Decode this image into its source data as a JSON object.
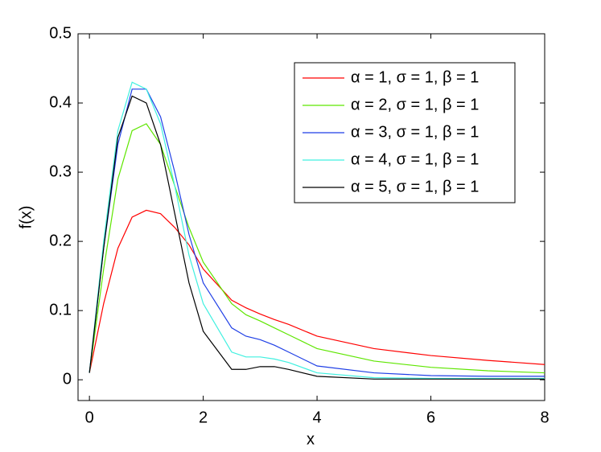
{
  "chart_data": {
    "type": "line",
    "x_label": "x",
    "y_label": "f(x)",
    "x": [
      0,
      0.25,
      0.5,
      0.75,
      1,
      1.25,
      1.5,
      1.75,
      2,
      2.5,
      2.75,
      3,
      3.25,
      3.5,
      4,
      5,
      6,
      7,
      8
    ],
    "series": [
      {
        "name": "α = 1, σ = 1, β = 1",
        "color": "#ff0000",
        "values": [
          0.01,
          0.11,
          0.19,
          0.235,
          0.245,
          0.24,
          0.22,
          0.195,
          0.16,
          0.115,
          0.104,
          0.095,
          0.087,
          0.08,
          0.063,
          0.045,
          0.035,
          0.028,
          0.022
        ]
      },
      {
        "name": "α = 2, σ = 1, β = 1",
        "color": "#5ee600",
        "values": [
          0.01,
          0.16,
          0.29,
          0.36,
          0.37,
          0.34,
          0.28,
          0.22,
          0.17,
          0.11,
          0.094,
          0.085,
          0.075,
          0.065,
          0.045,
          0.027,
          0.018,
          0.013,
          0.01
        ]
      },
      {
        "name": "α = 3, σ = 1, β = 1",
        "color": "#1f3fe6",
        "values": [
          0.01,
          0.19,
          0.34,
          0.42,
          0.42,
          0.38,
          0.3,
          0.21,
          0.14,
          0.075,
          0.063,
          0.058,
          0.05,
          0.04,
          0.02,
          0.01,
          0.006,
          0.005,
          0.005
        ]
      },
      {
        "name": "α = 4, σ = 1, β = 1",
        "color": "#40f0e0",
        "values": [
          0.01,
          0.2,
          0.36,
          0.43,
          0.42,
          0.37,
          0.28,
          0.18,
          0.11,
          0.04,
          0.033,
          0.033,
          0.03,
          0.025,
          0.01,
          0.003,
          0.002,
          0.002,
          0.002
        ]
      },
      {
        "name": "α = 5, σ = 1, β = 1",
        "color": "#000000",
        "values": [
          0.01,
          0.19,
          0.35,
          0.41,
          0.4,
          0.34,
          0.24,
          0.14,
          0.07,
          0.015,
          0.015,
          0.019,
          0.019,
          0.015,
          0.005,
          0.001,
          0.001,
          0.001,
          0.001
        ]
      }
    ],
    "xlim": [
      -0.2,
      8
    ],
    "ylim": [
      -0.03,
      0.5
    ],
    "xticks": [
      0,
      2,
      4,
      6,
      8
    ],
    "yticks": [
      0,
      0.1,
      0.2,
      0.3,
      0.4,
      0.5
    ],
    "legend": "top-right",
    "grid": false
  }
}
